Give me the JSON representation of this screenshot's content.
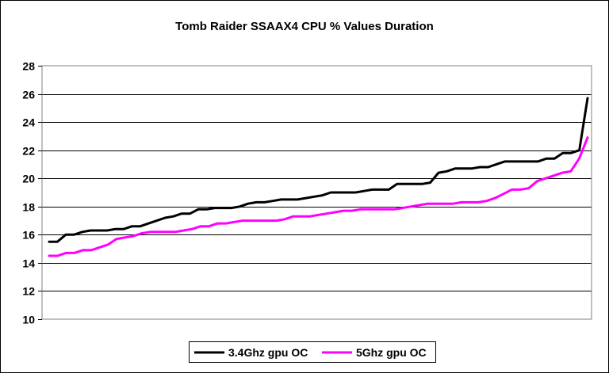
{
  "chart_data": {
    "type": "line",
    "title": "Tomb Raider SSAAX4 CPU % Values Duration",
    "xlabel": "",
    "ylabel": "",
    "ylim": [
      10,
      28
    ],
    "yticks": [
      "10",
      "12",
      "14",
      "16",
      "18",
      "20",
      "22",
      "24",
      "26",
      "28"
    ],
    "grid": true,
    "legend_position": "bottom-center",
    "series": [
      {
        "name": "3.4Ghz gpu OC",
        "color": "#000000",
        "values": [
          15.5,
          15.5,
          16.0,
          16.0,
          16.2,
          16.3,
          16.3,
          16.3,
          16.4,
          16.4,
          16.6,
          16.6,
          16.8,
          17.0,
          17.2,
          17.3,
          17.5,
          17.5,
          17.8,
          17.8,
          17.9,
          17.9,
          17.9,
          18.0,
          18.2,
          18.3,
          18.3,
          18.4,
          18.5,
          18.5,
          18.5,
          18.6,
          18.7,
          18.8,
          19.0,
          19.0,
          19.0,
          19.0,
          19.1,
          19.2,
          19.2,
          19.2,
          19.6,
          19.6,
          19.6,
          19.6,
          19.7,
          20.4,
          20.5,
          20.7,
          20.7,
          20.7,
          20.8,
          20.8,
          21.0,
          21.2,
          21.2,
          21.2,
          21.2,
          21.2,
          21.4,
          21.4,
          21.8,
          21.8,
          22.0,
          25.7
        ]
      },
      {
        "name": "5Ghz gpu OC",
        "color": "#ff00ff",
        "values": [
          14.5,
          14.5,
          14.7,
          14.7,
          14.9,
          14.9,
          15.1,
          15.3,
          15.7,
          15.8,
          15.9,
          16.1,
          16.2,
          16.2,
          16.2,
          16.2,
          16.3,
          16.4,
          16.6,
          16.6,
          16.8,
          16.8,
          16.9,
          17.0,
          17.0,
          17.0,
          17.0,
          17.0,
          17.1,
          17.3,
          17.3,
          17.3,
          17.4,
          17.5,
          17.6,
          17.7,
          17.7,
          17.8,
          17.8,
          17.8,
          17.8,
          17.8,
          17.9,
          18.0,
          18.1,
          18.2,
          18.2,
          18.2,
          18.2,
          18.3,
          18.3,
          18.3,
          18.4,
          18.6,
          18.9,
          19.2,
          19.2,
          19.3,
          19.8,
          20.0,
          20.2,
          20.4,
          20.5,
          21.4,
          22.9
        ]
      }
    ]
  }
}
